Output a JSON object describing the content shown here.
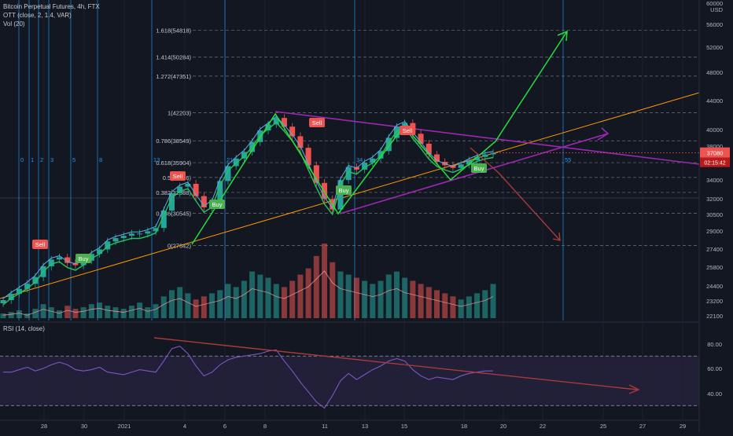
{
  "header": {
    "title": "Bitcoin Perpetual Futures, 4h, FTX",
    "indicator1": "OTT (close, 2, 1.4, VAR)",
    "indicator2": "Vol (20)"
  },
  "rsi_panel": {
    "title": "RSI (14, close)"
  },
  "colors": {
    "background": "#131722",
    "bull": "#26a69a",
    "bear": "#ef5350",
    "ott_green": "#22c55e",
    "otts": "#5dade2",
    "purple": "#9c27b0",
    "trend_orange": "#ff9800",
    "projection_green": "#22e03a",
    "projection_red": "#a83a3a",
    "rsi_line": "#7e57c2",
    "grid": "#1e222d"
  },
  "price_label": {
    "value": "37080",
    "countdown": "02:15:42"
  },
  "chart_data": {
    "type": "candlestick",
    "price_axis_ticks": [
      "60000",
      "USD",
      "56000",
      "52000",
      "48000",
      "44000",
      "40000",
      "38000",
      "36000",
      "34000",
      "32000",
      "30500",
      "29000",
      "27400",
      "25800",
      "24400",
      "23200",
      "22100"
    ],
    "fib_levels": [
      {
        "label": "1.618(54818)",
        "value": 54818
      },
      {
        "label": "1.414(50284)",
        "value": 50284
      },
      {
        "label": "1.272(47351)",
        "value": 47351
      },
      {
        "label": "1(42203)",
        "value": 42203
      },
      {
        "label": "0.786(38549)",
        "value": 38549
      },
      {
        "label": "0.618(35904)",
        "value": 35904
      },
      {
        "label": "0.5(34196)",
        "value": 34196
      },
      {
        "label": "0.382(32588)",
        "value": 32588
      },
      {
        "label": "0.236(30545)",
        "value": 30545
      },
      {
        "label": "0(27642)",
        "value": 27642
      }
    ],
    "cycle_labels": [
      "0",
      "1",
      "2",
      "3",
      "5",
      "8",
      "13",
      "21",
      "34",
      "55"
    ],
    "signals": [
      {
        "label": "Sell",
        "type": "sell"
      },
      {
        "label": "Buy",
        "type": "buy"
      },
      {
        "label": "Sell",
        "type": "sell"
      },
      {
        "label": "Buy",
        "type": "buy"
      },
      {
        "label": "Sell",
        "type": "sell"
      },
      {
        "label": "Buy",
        "type": "buy"
      },
      {
        "label": "Sell",
        "type": "sell"
      },
      {
        "label": "Buy",
        "type": "buy"
      }
    ],
    "x_tick_labels": [
      "28",
      "30",
      "2021",
      "4",
      "6",
      "8",
      "11",
      "13",
      "15",
      "18",
      "20",
      "22",
      "25",
      "27",
      "29"
    ],
    "rsi_axis_ticks": [
      "80.00",
      "60.00",
      "40.00"
    ],
    "rsi_levels": [
      70,
      30
    ],
    "price_path": [
      23200,
      23700,
      24100,
      24500,
      25000,
      25800,
      26400,
      26600,
      26100,
      25900,
      26300,
      26900,
      27300,
      28000,
      28300,
      28500,
      28700,
      28700,
      28900,
      29200,
      30800,
      32500,
      33200,
      33500,
      32200,
      31100,
      31600,
      33800,
      35500,
      36400,
      37200,
      38400,
      39800,
      40600,
      41500,
      40300,
      39100,
      37700,
      35600,
      33600,
      31900,
      30900,
      33900,
      35400,
      35100,
      35900,
      36400,
      37300,
      38900,
      40300,
      40800,
      39400,
      38200,
      36900,
      36000,
      35600,
      35300,
      35700,
      36200,
      36600,
      36900,
      37080
    ],
    "volume_path": [
      3,
      4,
      5,
      3,
      6,
      9,
      7,
      5,
      8,
      6,
      7,
      9,
      10,
      8,
      7,
      6,
      8,
      10,
      7,
      9,
      14,
      18,
      20,
      16,
      12,
      14,
      16,
      18,
      22,
      20,
      24,
      30,
      28,
      26,
      22,
      20,
      24,
      28,
      32,
      40,
      48,
      36,
      30,
      28,
      26,
      24,
      22,
      24,
      28,
      30,
      26,
      24,
      22,
      20,
      18,
      16,
      14,
      12,
      14,
      16,
      18,
      22
    ],
    "rsi_path": [
      57,
      57,
      59,
      61,
      58,
      60,
      63,
      65,
      63,
      59,
      58,
      59,
      61,
      57,
      56,
      55,
      57,
      59,
      58,
      57,
      66,
      76,
      78,
      72,
      62,
      54,
      57,
      63,
      67,
      69,
      70,
      71,
      72,
      74,
      75,
      66,
      58,
      49,
      41,
      33,
      28,
      38,
      50,
      56,
      51,
      55,
      59,
      62,
      66,
      68,
      66,
      59,
      54,
      51,
      53,
      52,
      51,
      54,
      56,
      57,
      58,
      58
    ]
  }
}
